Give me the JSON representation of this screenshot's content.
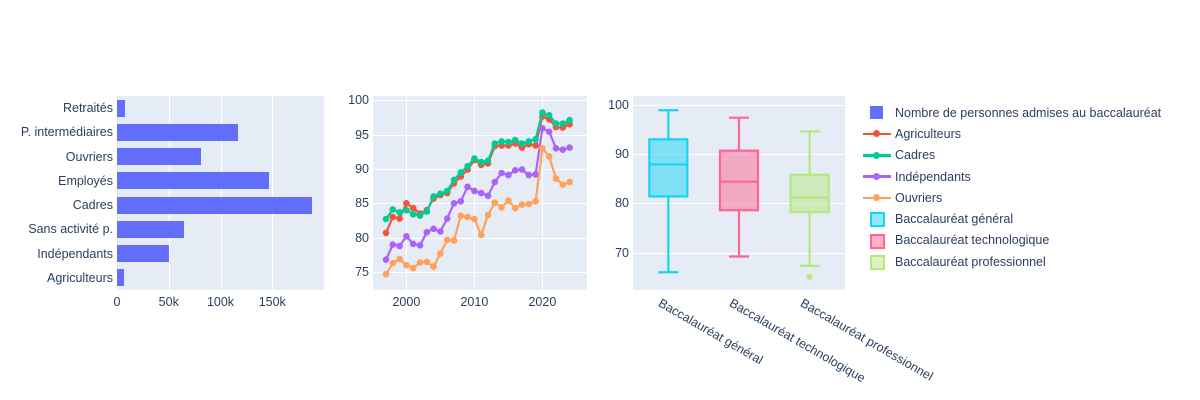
{
  "colors": {
    "paper_bg": "#ffffff",
    "plot_bg": "#E5ECF6",
    "grid": "#ffffff",
    "text": "#2A3F5F",
    "bar": "#636EFA"
  },
  "legend": {
    "items": [
      {
        "label": "Nombre de personnes admises au baccalauréat",
        "swatch": "bar",
        "color": "#636EFA"
      },
      {
        "label": "Agriculteurs",
        "swatch": "line",
        "color": "#EF553B"
      },
      {
        "label": "Cadres",
        "swatch": "line",
        "color": "#00CC96"
      },
      {
        "label": "Indépendants",
        "swatch": "line",
        "color": "#AB63FA"
      },
      {
        "label": "Ouvriers",
        "swatch": "line",
        "color": "#FFA15A"
      },
      {
        "label": "Baccalauréat général",
        "swatch": "box",
        "color": "#19D3F3"
      },
      {
        "label": "Baccalauréat technologique",
        "swatch": "box",
        "color": "#FF6692"
      },
      {
        "label": "Baccalauréat professionnel",
        "swatch": "box",
        "color": "#B6E880"
      }
    ]
  },
  "chart_data": [
    {
      "type": "bar",
      "orientation": "horizontal",
      "series_name": "Nombre de personnes admises au baccalauréat",
      "categories": [
        "Retraités",
        "P. intermédiaires",
        "Ouvriers",
        "Employés",
        "Cadres",
        "Sans activité p.",
        "Indépendants",
        "Agriculteurs"
      ],
      "values": [
        7300,
        117000,
        81000,
        147000,
        188000,
        64500,
        50000,
        6400
      ],
      "color": "#636EFA",
      "xlim": [
        0,
        200000
      ],
      "xticks": [
        {
          "value": 0,
          "label": "0"
        },
        {
          "value": 50000,
          "label": "50k"
        },
        {
          "value": 100000,
          "label": "100k"
        },
        {
          "value": 150000,
          "label": "150k"
        }
      ],
      "grid": true
    },
    {
      "type": "line",
      "title": "",
      "x": [
        1997,
        1998,
        1999,
        2000,
        2001,
        2002,
        2003,
        2004,
        2005,
        2006,
        2007,
        2008,
        2009,
        2010,
        2011,
        2012,
        2013,
        2014,
        2015,
        2016,
        2017,
        2018,
        2019,
        2020,
        2021,
        2022,
        2023,
        2024
      ],
      "series": [
        {
          "name": "Agriculteurs",
          "color": "#EF553B",
          "values": [
            80.7,
            83.0,
            82.8,
            85.0,
            84.3,
            83.5,
            84.0,
            85.7,
            86.2,
            86.5,
            87.9,
            88.9,
            89.9,
            91.3,
            90.6,
            90.8,
            93.3,
            93.4,
            93.4,
            93.7,
            93.1,
            93.6,
            93.4,
            97.6,
            97.2,
            96.1,
            96.0,
            96.5
          ]
        },
        {
          "name": "Cadres",
          "color": "#00CC96",
          "values": [
            82.7,
            84.1,
            83.7,
            84.0,
            83.4,
            83.2,
            83.8,
            86.0,
            86.4,
            86.8,
            88.4,
            89.5,
            90.4,
            91.5,
            91.0,
            91.2,
            93.7,
            94.0,
            93.9,
            94.2,
            93.7,
            94.0,
            94.3,
            98.2,
            97.8,
            96.6,
            96.6,
            97.1
          ]
        },
        {
          "name": "Indépendants",
          "color": "#AB63FA",
          "values": [
            76.8,
            79.0,
            78.8,
            80.2,
            79.1,
            78.9,
            80.8,
            81.3,
            80.9,
            82.8,
            85.0,
            85.3,
            87.4,
            86.8,
            86.5,
            86.1,
            88.1,
            89.4,
            89.1,
            89.8,
            89.9,
            89.1,
            89.2,
            95.9,
            95.4,
            93.0,
            92.8,
            93.1
          ]
        },
        {
          "name": "Ouvriers",
          "color": "#FFA15A",
          "values": [
            74.7,
            76.3,
            76.9,
            76.0,
            75.6,
            76.4,
            76.5,
            75.8,
            77.7,
            79.7,
            79.6,
            83.2,
            83.0,
            82.7,
            80.4,
            83.3,
            85.1,
            84.4,
            85.4,
            84.3,
            84.8,
            84.9,
            85.3,
            93.0,
            91.8,
            88.6,
            87.7,
            88.1
          ]
        }
      ],
      "ylim": [
        72.4,
        100.6
      ],
      "yticks": [
        75,
        80,
        85,
        90,
        95,
        100
      ],
      "xticks": [
        2000,
        2010,
        2020
      ],
      "grid": true,
      "legend_position": "right"
    },
    {
      "type": "box",
      "categories": [
        "Baccalauréat général",
        "Baccalauréat technologique",
        "Baccalauréat professionnel"
      ],
      "boxes": [
        {
          "name": "Baccalauréat général",
          "color": "#19D3F3",
          "min": 66.0,
          "q1": 81.4,
          "median": 87.9,
          "q3": 93.0,
          "max": 98.9,
          "outliers": []
        },
        {
          "name": "Baccalauréat technologique",
          "color": "#FF6692",
          "min": 69.2,
          "q1": 78.6,
          "median": 84.4,
          "q3": 90.7,
          "max": 97.4,
          "outliers": []
        },
        {
          "name": "Baccalauréat professionnel",
          "color": "#B6E880",
          "min": 67.3,
          "q1": 78.2,
          "median": 81.2,
          "q3": 85.8,
          "max": 94.6,
          "outliers": [
            65.1
          ]
        }
      ],
      "ylim": [
        62.4,
        101.8
      ],
      "yticks": [
        70,
        80,
        90,
        100
      ],
      "xtick_angle": 30,
      "grid": true
    }
  ]
}
